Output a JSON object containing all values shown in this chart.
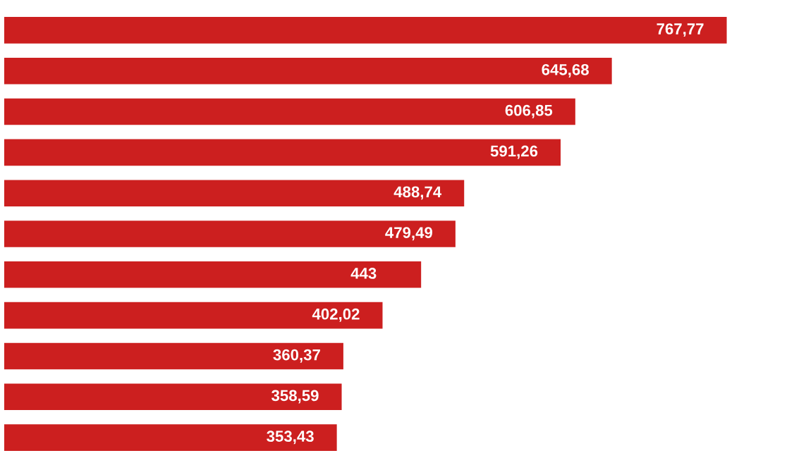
{
  "chart_data": {
    "type": "bar",
    "orientation": "horizontal",
    "categories": [
      null,
      null,
      null,
      null,
      null,
      null,
      null,
      null,
      null,
      null,
      null
    ],
    "values": [
      767.77,
      645.68,
      606.85,
      591.26,
      488.74,
      479.49,
      443,
      402.02,
      360.37,
      358.59,
      353.43
    ],
    "value_labels": [
      "767,77",
      "645,68",
      "606,85",
      "591,26",
      "488,74",
      "479,49",
      "443",
      "402,02",
      "360,37",
      "358,59",
      "353,43"
    ],
    "color": "#cc1f1f",
    "grid": false,
    "legend": false
  }
}
